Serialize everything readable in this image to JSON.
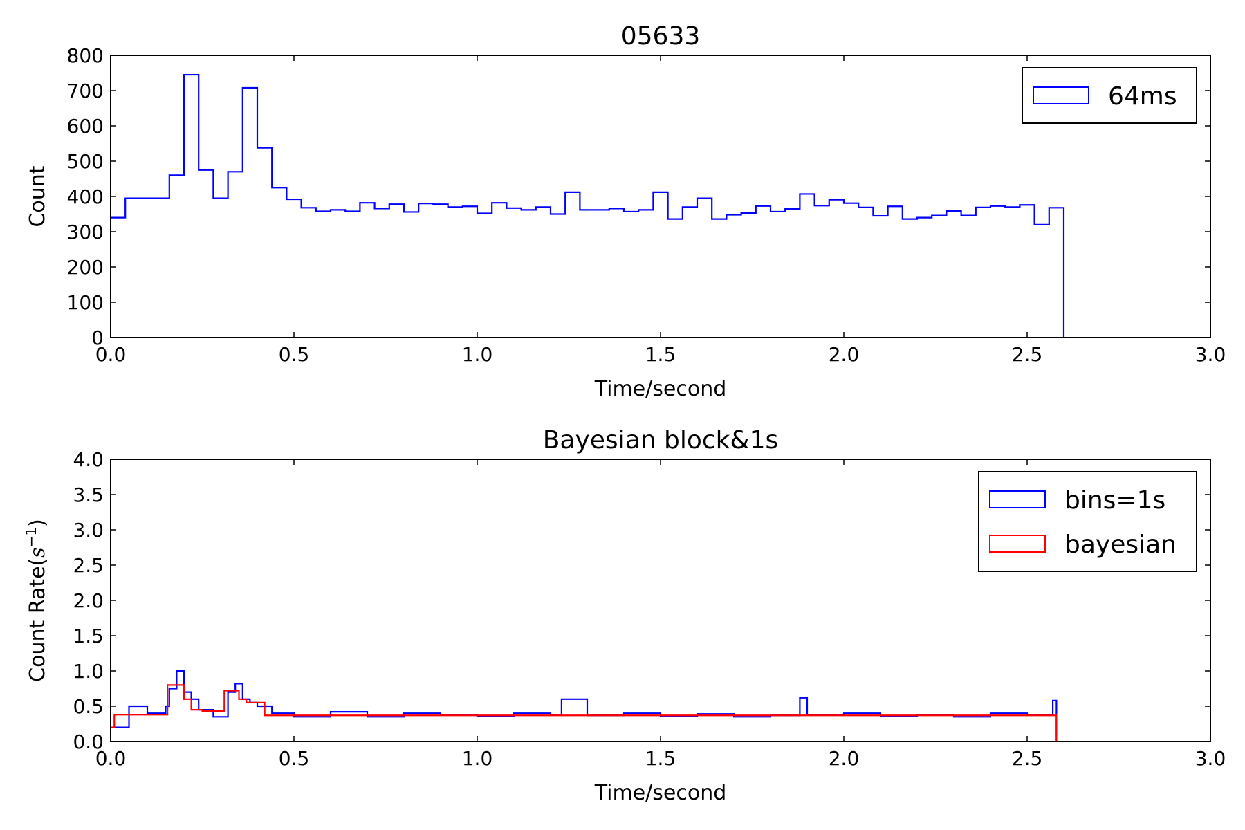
{
  "chart_data": [
    {
      "type": "line",
      "title": "05633",
      "xlabel": "Time/second",
      "ylabel": "Count",
      "xlim": [
        0.0,
        3.0
      ],
      "ylim": [
        0,
        800
      ],
      "xticks": [
        "0.0",
        "0.5",
        "1.0",
        "1.5",
        "2.0",
        "2.5",
        "3.0"
      ],
      "yticks": [
        "0",
        "100",
        "200",
        "300",
        "400",
        "500",
        "600",
        "700",
        "800"
      ],
      "legend": {
        "placement": "top-right"
      },
      "series": [
        {
          "name": "64ms",
          "color": "#0000ff",
          "drawstyle": "steps",
          "x": [
            0.0,
            0.04,
            0.12,
            0.16,
            0.2,
            0.24,
            0.28,
            0.32,
            0.36,
            0.4,
            0.44,
            0.48,
            0.52,
            0.56,
            0.6,
            0.64,
            0.68,
            0.72,
            0.76,
            0.8,
            0.84,
            0.88,
            0.92,
            0.96,
            1.0,
            1.04,
            1.08,
            1.12,
            1.16,
            1.2,
            1.24,
            1.28,
            1.32,
            1.36,
            1.4,
            1.44,
            1.48,
            1.52,
            1.56,
            1.6,
            1.64,
            1.68,
            1.72,
            1.76,
            1.8,
            1.84,
            1.88,
            1.92,
            1.96,
            2.0,
            2.04,
            2.08,
            2.12,
            2.16,
            2.2,
            2.24,
            2.28,
            2.32,
            2.36,
            2.4,
            2.44,
            2.48,
            2.52,
            2.56,
            2.6
          ],
          "values": [
            340,
            395,
            395,
            460,
            745,
            475,
            395,
            470,
            708,
            538,
            425,
            392,
            368,
            358,
            362,
            358,
            382,
            366,
            378,
            356,
            380,
            378,
            370,
            372,
            352,
            382,
            367,
            362,
            370,
            350,
            412,
            362,
            362,
            366,
            357,
            362,
            412,
            336,
            370,
            395,
            336,
            348,
            353,
            373,
            357,
            365,
            407,
            374,
            391,
            381,
            369,
            345,
            372,
            336,
            340,
            346,
            359,
            346,
            369,
            373,
            370,
            376,
            320,
            368,
            0
          ]
        }
      ]
    },
    {
      "type": "line",
      "title": "Bayesian block&1s",
      "xlabel": "Time/second",
      "ylabel_text": "Count Rate(",
      "ylabel_math_base": "s",
      "ylabel_math_exp": "−1",
      "ylabel_close": ")",
      "xlim": [
        0.0,
        3.0
      ],
      "ylim": [
        0.0,
        4.0
      ],
      "xticks": [
        "0.0",
        "0.5",
        "1.0",
        "1.5",
        "2.0",
        "2.5",
        "3.0"
      ],
      "yticks": [
        "0.0",
        "0.5",
        "1.0",
        "1.5",
        "2.0",
        "2.5",
        "3.0",
        "3.5",
        "4.0"
      ],
      "legend": {
        "placement": "top-right"
      },
      "series": [
        {
          "name": "bins=1s",
          "color": "#0000ff",
          "drawstyle": "steps",
          "x": [
            0.0,
            0.05,
            0.1,
            0.15,
            0.16,
            0.18,
            0.2,
            0.22,
            0.24,
            0.28,
            0.32,
            0.34,
            0.36,
            0.38,
            0.4,
            0.44,
            0.5,
            0.6,
            0.7,
            0.8,
            0.9,
            1.0,
            1.1,
            1.2,
            1.23,
            1.3,
            1.4,
            1.5,
            1.6,
            1.7,
            1.8,
            1.88,
            1.9,
            2.0,
            2.1,
            2.2,
            2.3,
            2.4,
            2.5,
            2.57,
            2.58
          ],
          "values": [
            0.2,
            0.5,
            0.4,
            0.5,
            0.75,
            1.0,
            0.7,
            0.6,
            0.45,
            0.35,
            0.7,
            0.82,
            0.6,
            0.55,
            0.5,
            0.4,
            0.35,
            0.42,
            0.35,
            0.4,
            0.38,
            0.36,
            0.4,
            0.38,
            0.6,
            0.37,
            0.4,
            0.36,
            0.39,
            0.35,
            0.37,
            0.62,
            0.38,
            0.4,
            0.36,
            0.38,
            0.35,
            0.4,
            0.38,
            0.58,
            0.0
          ]
        },
        {
          "name": "bayesian",
          "color": "#ff0000",
          "drawstyle": "steps",
          "x": [
            0.0,
            0.01,
            0.155,
            0.2,
            0.22,
            0.25,
            0.31,
            0.35,
            0.37,
            0.42,
            2.58
          ],
          "values": [
            0.2,
            0.38,
            0.8,
            0.6,
            0.45,
            0.43,
            0.72,
            0.6,
            0.55,
            0.37,
            0.0
          ]
        }
      ]
    }
  ]
}
